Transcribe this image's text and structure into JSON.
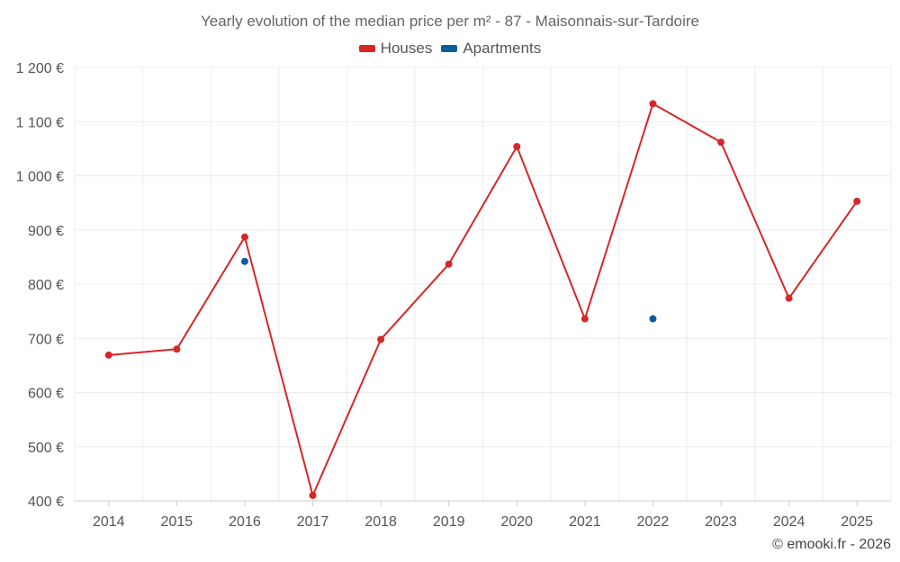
{
  "chart_data": {
    "type": "line",
    "title": "Yearly evolution of the median price per m² - 87 - Maisonnais-sur-Tardoire",
    "categories": [
      "2014",
      "2015",
      "2016",
      "2017",
      "2018",
      "2019",
      "2020",
      "2021",
      "2022",
      "2023",
      "2024",
      "2025"
    ],
    "ylim": [
      400,
      1200
    ],
    "yticks": [
      400,
      500,
      600,
      700,
      800,
      900,
      1000,
      1100,
      1200
    ],
    "ytick_labels": [
      "400 €",
      "500 €",
      "600 €",
      "700 €",
      "800 €",
      "900 €",
      "1 000 €",
      "1 100 €",
      "1 200 €"
    ],
    "grid": true,
    "legend_position": "top-center",
    "series": [
      {
        "name": "Houses",
        "color": "#d62728",
        "line": true,
        "values": [
          669,
          680,
          887,
          410,
          698,
          837,
          1054,
          736,
          1133,
          1062,
          774,
          953
        ]
      },
      {
        "name": "Apartments",
        "color": "#0b5d96",
        "line": false,
        "values": [
          null,
          null,
          842,
          null,
          null,
          null,
          null,
          null,
          736,
          null,
          null,
          null
        ]
      }
    ]
  },
  "credit": "© emooki.fr - 2026"
}
